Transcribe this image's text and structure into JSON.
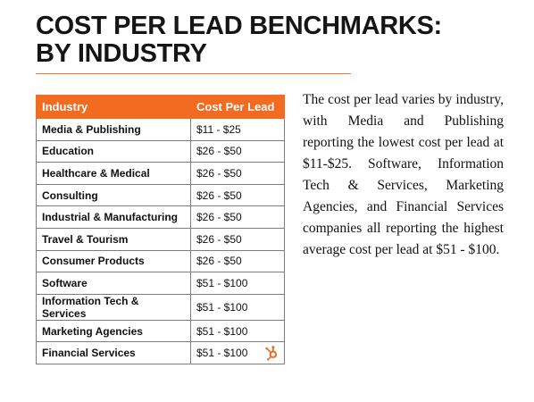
{
  "header": {
    "title_line1": "COST PER LEAD BENCHMARKS:",
    "title_line2": "BY INDUSTRY",
    "accent_color": "#f26b21"
  },
  "table": {
    "columns": [
      "Industry",
      "Cost Per Lead"
    ],
    "rows": [
      [
        "Media & Publishing",
        "$11 - $25"
      ],
      [
        "Education",
        "$26 - $50"
      ],
      [
        "Healthcare & Medical",
        "$26 - $50"
      ],
      [
        "Consulting",
        "$26 - $50"
      ],
      [
        "Industrial & Manufacturing",
        "$26 - $50"
      ],
      [
        "Travel & Tourism",
        "$26 - $50"
      ],
      [
        "Consumer Products",
        "$26 - $50"
      ],
      [
        "Software",
        "$51 - $100"
      ],
      [
        "Information Tech & Services",
        "$51 - $100"
      ],
      [
        "Marketing Agencies",
        "$51 - $100"
      ],
      [
        "Financial Services",
        "$51 - $100"
      ]
    ],
    "logo_icon": "hubspot-sprocket-icon"
  },
  "body_text": "The cost per lead varies by industry, with Media and Publishing reporting the lowest cost per lead at $11-$25. Software, Information Tech & Services, Marketing Agencies, and Financial Services companies all reporting the highest average cost per lead at $51 - $100."
}
